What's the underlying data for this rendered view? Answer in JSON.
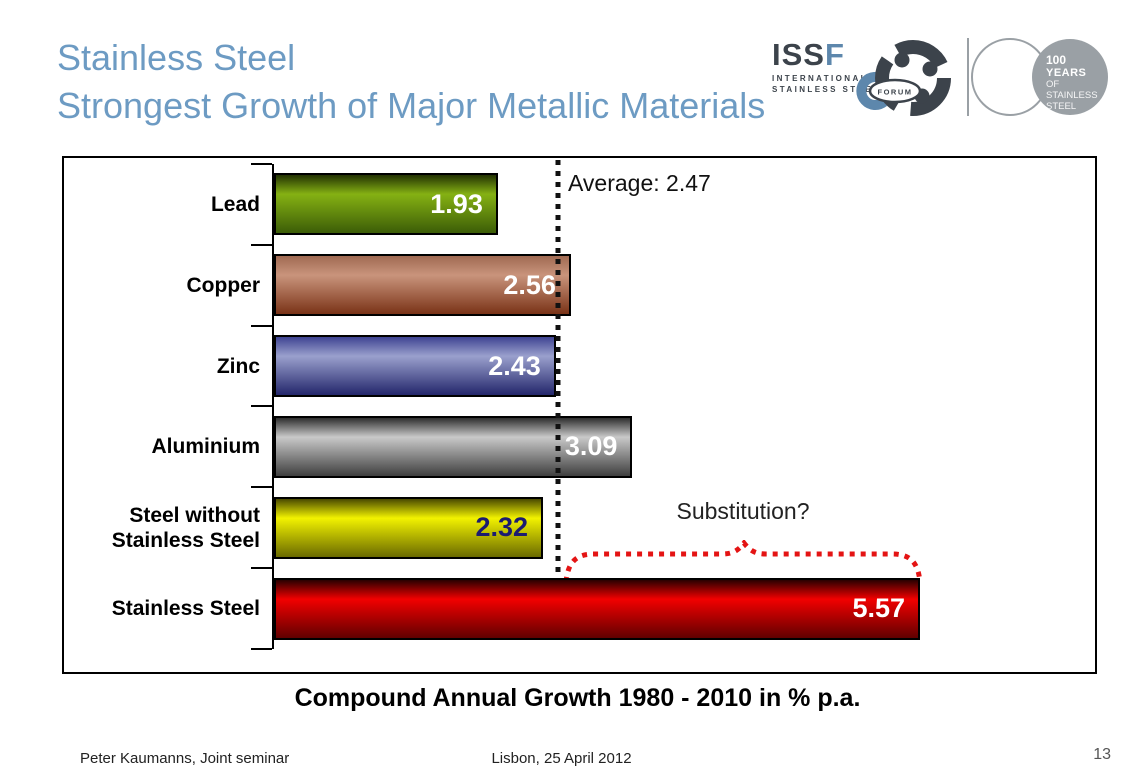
{
  "slide": {
    "title_line1": "Stainless Steel",
    "title_line2": "Strongest Growth of Major Metallic Materials",
    "title_color": "#6d9bc3",
    "footer_left": "Peter Kaumanns, Joint seminar",
    "footer_center": "Lisbon, 25 April 2012",
    "page_number": "13"
  },
  "logos": {
    "issf": {
      "acronym_prefix": "ISS",
      "acronym_suffix": "F",
      "sub_line1": "INTERNATIONAL",
      "sub_line2": "STAINLESS STEEL",
      "badge": "FORUM",
      "dark_color": "#3c434b",
      "blue_color": "#5d87ac"
    },
    "centenary": {
      "line1": "100",
      "line2": "YEARS",
      "line3": "OF",
      "line4": "STAINLESS",
      "line5": "STEEL",
      "gray_color": "#9aa0a5"
    }
  },
  "chart_data": {
    "type": "bar",
    "orientation": "horizontal",
    "xlabel": "Compound Annual Growth 1980 - 2010 in % p.a.",
    "xlim": [
      0,
      7.07
    ],
    "grid": false,
    "average_value": 2.47,
    "average_label": "Average: 2.47",
    "average_line_color": "#111111",
    "annotation": "Substitution?",
    "annotation_brace_color": "#e41414",
    "bars": [
      {
        "category": "Lead",
        "value": 1.93,
        "value_label": "1.93",
        "color_top": "#223202",
        "color_light": "#85b113",
        "color_dark": "#3c5d07",
        "value_color": "#ffffff"
      },
      {
        "category": "Copper",
        "value": 2.56,
        "value_label": "2.56",
        "color_top": "#a06a52",
        "color_light": "#c9947c",
        "color_dark": "#7a3317",
        "value_color": "#ffffff"
      },
      {
        "category": "Zinc",
        "value": 2.43,
        "value_label": "2.43",
        "color_top": "#3e4392",
        "color_light": "#9aa0cd",
        "color_dark": "#23266b",
        "value_color": "#ffffff"
      },
      {
        "category": "Aluminium",
        "value": 3.09,
        "value_label": "3.09",
        "color_top": "#2e2e2e",
        "color_light": "#c9c9c9",
        "color_dark": "#3f3f3f",
        "value_color": "#ffffff"
      },
      {
        "category": "Steel without Stainless Steel",
        "value": 2.32,
        "value_label": "2.32",
        "color_top": "#4a4a00",
        "color_light": "#f2f200",
        "color_dark": "#6a6a00",
        "value_color": "#1c1c70"
      },
      {
        "category": "Stainless Steel",
        "value": 5.57,
        "value_label": "5.57",
        "color_top": "#2a0000",
        "color_light": "#f20000",
        "color_dark": "#610000",
        "value_color": "#ffffff"
      }
    ]
  }
}
